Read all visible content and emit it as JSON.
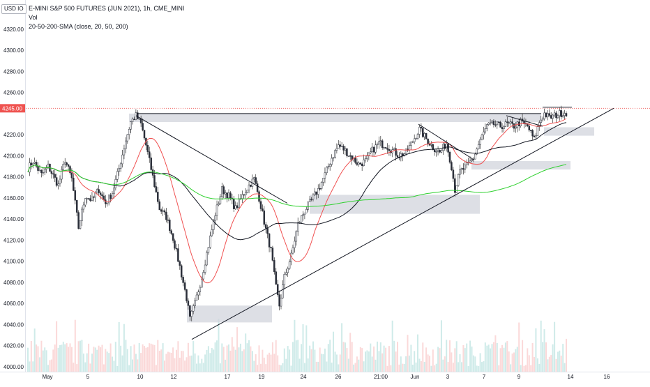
{
  "header": {
    "unit_label": "USD",
    "unit_suffix": "IO",
    "title": "E-MINI S&P 500 FUTURES (JUN 2021), 1h, CME_MINI",
    "volume_label": "Vol",
    "indicator_label": "20-50-200-SMA (close, 20, 50, 200)"
  },
  "colors": {
    "up": "#26a69a",
    "down": "#ef5350",
    "sma20": "#f05050",
    "sma50": "#131722",
    "sma200": "#2fd12f",
    "zones": "#d1d4dc",
    "price_badge": "#ef5350",
    "trendline": "#131722"
  },
  "chart_data": {
    "type": "candlestick",
    "title": "E-MINI S&P 500 FUTURES (JUN 2021), 1h, CME_MINI",
    "last_price": 4245.0,
    "last_price_label": "4245.00",
    "ylim": [
      3995,
      4335
    ],
    "y_ticks": [
      4000,
      4020,
      4040,
      4060,
      4080,
      4100,
      4120,
      4140,
      4160,
      4180,
      4200,
      4220,
      4240,
      4260,
      4280,
      4300,
      4320
    ],
    "x_ticks": [
      "May",
      "5",
      "10",
      "12",
      "17",
      "19",
      "24",
      "26",
      "21:00",
      "Jun",
      "3",
      "7",
      "9",
      "14",
      "16"
    ],
    "price_path": [
      {
        "i": 0,
        "p": 4188
      },
      {
        "i": 3,
        "p": 4195
      },
      {
        "i": 8,
        "p": 4182
      },
      {
        "i": 12,
        "p": 4190
      },
      {
        "i": 18,
        "p": 4172
      },
      {
        "i": 22,
        "p": 4196
      },
      {
        "i": 26,
        "p": 4178
      },
      {
        "i": 30,
        "p": 4132
      },
      {
        "i": 34,
        "p": 4162
      },
      {
        "i": 38,
        "p": 4158
      },
      {
        "i": 42,
        "p": 4168
      },
      {
        "i": 46,
        "p": 4155
      },
      {
        "i": 50,
        "p": 4165
      },
      {
        "i": 54,
        "p": 4188
      },
      {
        "i": 58,
        "p": 4215
      },
      {
        "i": 61,
        "p": 4232
      },
      {
        "i": 64,
        "p": 4238
      },
      {
        "i": 67,
        "p": 4230
      },
      {
        "i": 70,
        "p": 4210
      },
      {
        "i": 74,
        "p": 4180
      },
      {
        "i": 78,
        "p": 4150
      },
      {
        "i": 82,
        "p": 4142
      },
      {
        "i": 86,
        "p": 4122
      },
      {
        "i": 90,
        "p": 4095
      },
      {
        "i": 94,
        "p": 4065
      },
      {
        "i": 96,
        "p": 4045
      },
      {
        "i": 99,
        "p": 4060
      },
      {
        "i": 103,
        "p": 4085
      },
      {
        "i": 107,
        "p": 4115
      },
      {
        "i": 111,
        "p": 4145
      },
      {
        "i": 115,
        "p": 4168
      },
      {
        "i": 119,
        "p": 4162
      },
      {
        "i": 123,
        "p": 4150
      },
      {
        "i": 127,
        "p": 4162
      },
      {
        "i": 131,
        "p": 4172
      },
      {
        "i": 134,
        "p": 4178
      },
      {
        "i": 137,
        "p": 4160
      },
      {
        "i": 141,
        "p": 4130
      },
      {
        "i": 144,
        "p": 4110
      },
      {
        "i": 147,
        "p": 4075
      },
      {
        "i": 149,
        "p": 4058
      },
      {
        "i": 152,
        "p": 4085
      },
      {
        "i": 156,
        "p": 4105
      },
      {
        "i": 160,
        "p": 4135
      },
      {
        "i": 164,
        "p": 4148
      },
      {
        "i": 168,
        "p": 4158
      },
      {
        "i": 172,
        "p": 4168
      },
      {
        "i": 176,
        "p": 4182
      },
      {
        "i": 180,
        "p": 4198
      },
      {
        "i": 184,
        "p": 4210
      },
      {
        "i": 188,
        "p": 4205
      },
      {
        "i": 192,
        "p": 4198
      },
      {
        "i": 196,
        "p": 4192
      },
      {
        "i": 200,
        "p": 4195
      },
      {
        "i": 204,
        "p": 4205
      },
      {
        "i": 208,
        "p": 4212
      },
      {
        "i": 212,
        "p": 4210
      },
      {
        "i": 216,
        "p": 4205
      },
      {
        "i": 220,
        "p": 4200
      },
      {
        "i": 224,
        "p": 4203
      },
      {
        "i": 228,
        "p": 4214
      },
      {
        "i": 232,
        "p": 4225
      },
      {
        "i": 236,
        "p": 4216
      },
      {
        "i": 240,
        "p": 4208
      },
      {
        "i": 244,
        "p": 4203
      },
      {
        "i": 248,
        "p": 4212
      },
      {
        "i": 251,
        "p": 4190
      },
      {
        "i": 253,
        "p": 4168
      },
      {
        "i": 256,
        "p": 4185
      },
      {
        "i": 260,
        "p": 4190
      },
      {
        "i": 264,
        "p": 4198
      },
      {
        "i": 268,
        "p": 4215
      },
      {
        "i": 272,
        "p": 4228
      },
      {
        "i": 276,
        "p": 4230
      },
      {
        "i": 280,
        "p": 4228
      },
      {
        "i": 284,
        "p": 4230
      },
      {
        "i": 288,
        "p": 4228
      },
      {
        "i": 292,
        "p": 4232
      },
      {
        "i": 296,
        "p": 4228
      },
      {
        "i": 300,
        "p": 4215
      },
      {
        "i": 303,
        "p": 4232
      },
      {
        "i": 306,
        "p": 4240
      },
      {
        "i": 309,
        "p": 4236
      },
      {
        "i": 312,
        "p": 4238
      },
      {
        "i": 315,
        "p": 4240
      },
      {
        "i": 318,
        "p": 4241
      }
    ]
  }
}
